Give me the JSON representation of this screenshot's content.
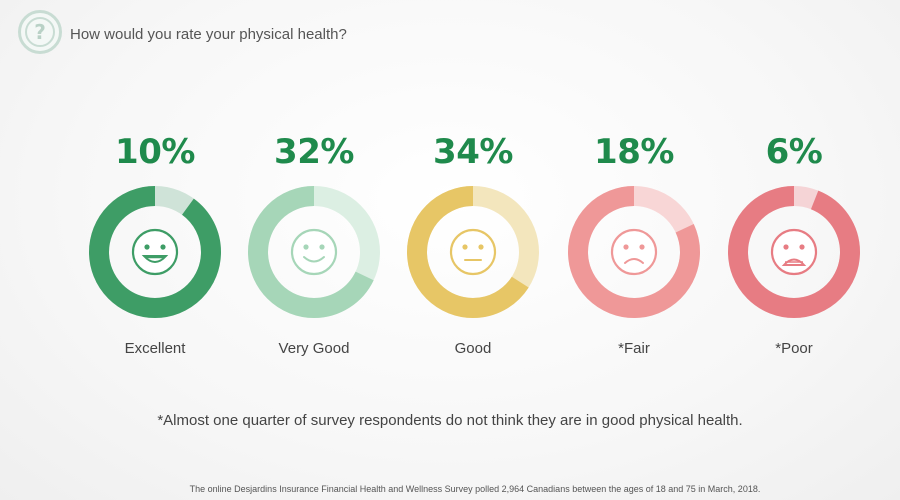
{
  "header": {
    "icon": "question-mark-icon",
    "question": "How would you rate your physical health?"
  },
  "chart_data": {
    "type": "pie",
    "title": "How would you rate your physical health?",
    "items": [
      {
        "label": "Excellent",
        "percent_label": "10%",
        "value": 10,
        "color": "#3e9d66",
        "track": "#cfe3d8",
        "face": "big-smile-icon"
      },
      {
        "label": "Very Good",
        "percent_label": "32%",
        "value": 32,
        "color": "#a6d6b8",
        "track": "#dcefe3",
        "face": "smile-icon"
      },
      {
        "label": "Good",
        "percent_label": "34%",
        "value": 34,
        "color": "#e7c666",
        "track": "#f3e6bd",
        "face": "neutral-face-icon"
      },
      {
        "label": "*Fair",
        "percent_label": "18%",
        "value": 18,
        "color": "#ef9898",
        "track": "#f8d6d6",
        "face": "frown-icon"
      },
      {
        "label": "*Poor",
        "percent_label": "6%",
        "value": 6,
        "color": "#e77c83",
        "track": "#f5d4d6",
        "face": "sad-face-icon"
      }
    ]
  },
  "footnote": "*Almost one quarter of survey respondents do not think they are in good physical health.",
  "source": "The online Desjardins Insurance Financial Health and Wellness Survey polled 2,964 Canadians between the ages of 18 and 75 in March, 2018."
}
